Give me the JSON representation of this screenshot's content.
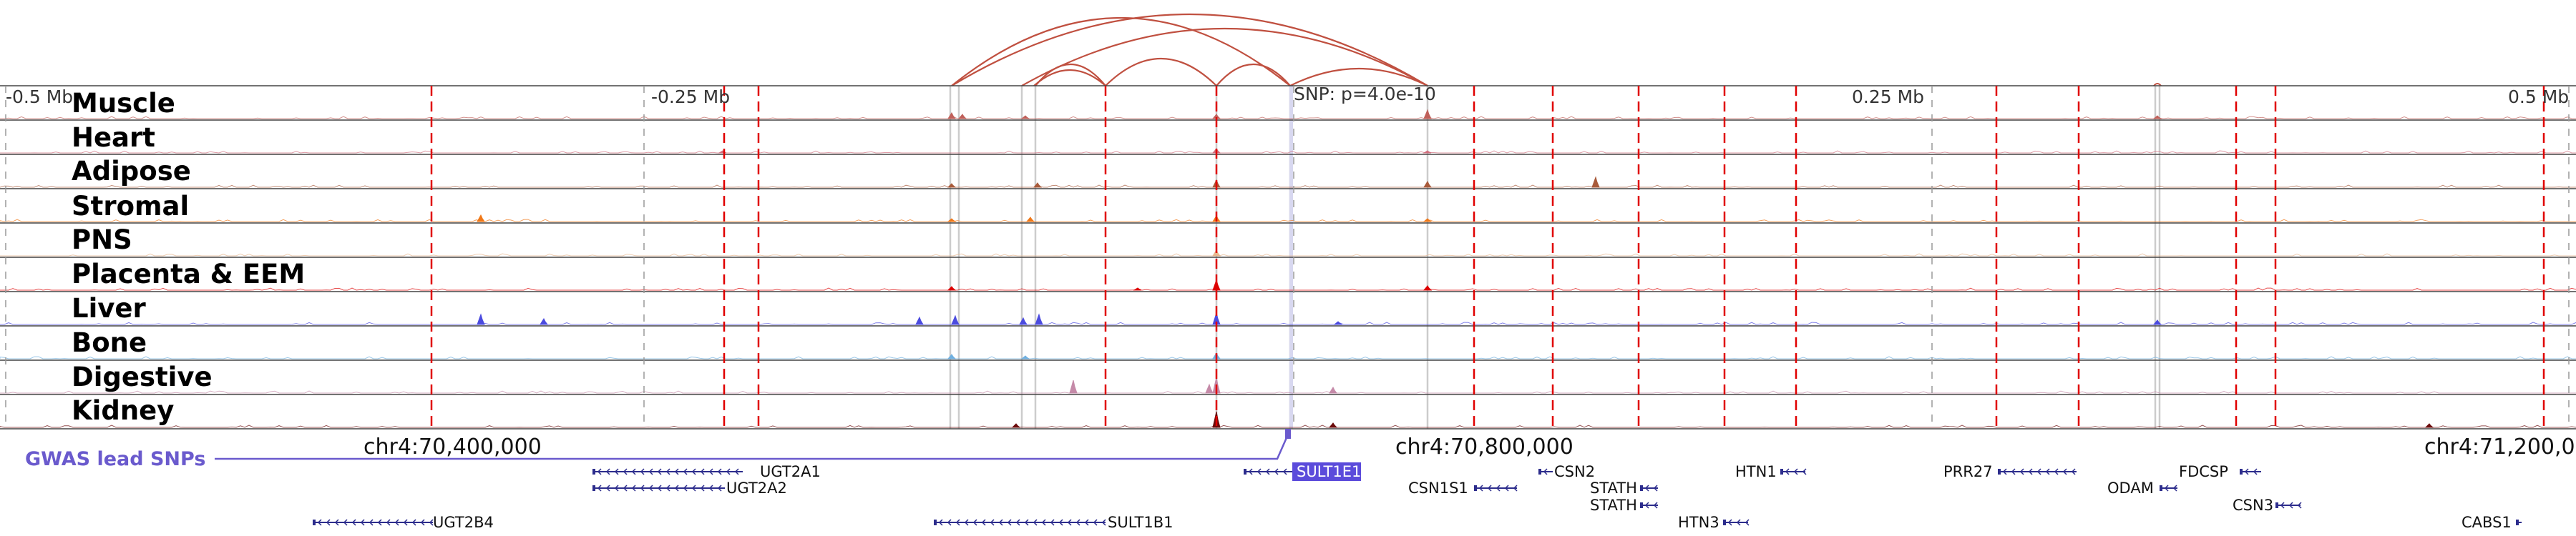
{
  "scale_labels": [
    "-0.5 Mb",
    "-0.25 Mb",
    "SNP: p=4.0e-10",
    "0.25 Mb",
    "0.5 Mb"
  ],
  "tracks": [
    {
      "label": "Muscle",
      "color": "#c0605a"
    },
    {
      "label": "Heart",
      "color": "#d27080"
    },
    {
      "label": "Adipose",
      "color": "#a85a3a"
    },
    {
      "label": "Stromal",
      "color": "#f07818"
    },
    {
      "label": "PNS",
      "color": "#e8b890"
    },
    {
      "label": "Placenta & EEM",
      "color": "#dd0000"
    },
    {
      "label": "Liver",
      "color": "#4b4bdf"
    },
    {
      "label": "Bone",
      "color": "#70b0e0"
    },
    {
      "label": "Digestive",
      "color": "#c58aa8"
    },
    {
      "label": "Kidney",
      "color": "#6b0a0a"
    }
  ],
  "gwas_label": "GWAS lead SNPs",
  "coordinates": [
    "chr4:70,400,000",
    "chr4:70,800,000",
    "chr4:71,200,0"
  ],
  "genes": [
    {
      "name": "UGT2A1",
      "row": 0
    },
    {
      "name": "UGT2A2",
      "row": 1
    },
    {
      "name": "UGT2B4",
      "row": 2
    },
    {
      "name": "SULT1E1",
      "row": 0,
      "highlight": true
    },
    {
      "name": "SULT1B1",
      "row": 2
    },
    {
      "name": "CSN1S1",
      "row": 1
    },
    {
      "name": "CSN2",
      "row": 0
    },
    {
      "name": "STATH",
      "row": 1
    },
    {
      "name": "STATH",
      "row": 2
    },
    {
      "name": "HTN1",
      "row": 0
    },
    {
      "name": "HTN3",
      "row": 3
    },
    {
      "name": "PRR27",
      "row": 0
    },
    {
      "name": "ODAM",
      "row": 1
    },
    {
      "name": "FDCSP",
      "row": 0
    },
    {
      "name": "CSN3",
      "row": 2
    },
    {
      "name": "CABS1",
      "row": 3
    }
  ],
  "colors": {
    "gene": "#2c2c8c",
    "highlight": "#5b4bdb",
    "dashed": "#e00000",
    "link": "#c05040",
    "gwas": "#6a5acd"
  }
}
